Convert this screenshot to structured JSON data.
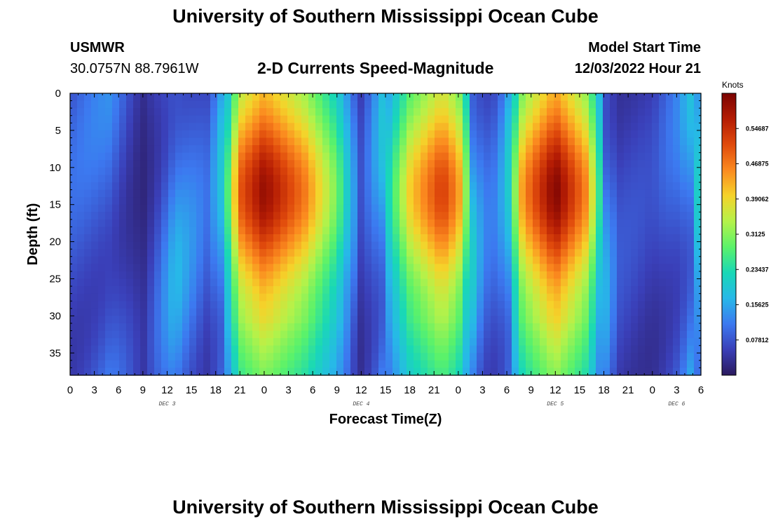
{
  "page": {
    "title": "University of Southern Mississippi Ocean Cube",
    "station_name": "USMWR",
    "station_coords": "30.0757N  88.7961W",
    "subtitle": "2-D Currents Speed-Magnitude",
    "model_start_label": "Model Start Time",
    "model_start_value": "12/03/2022 Hour 21",
    "footer_title": "University of Southern Mississippi Ocean Cube"
  },
  "chart_data": {
    "type": "heatmap",
    "title": "2-D Currents Speed-Magnitude",
    "xlabel": "Forecast Time(Z)",
    "ylabel": "Depth (ft)",
    "x_range_hours": [
      0,
      78
    ],
    "x_tick_hours": [
      0,
      3,
      6,
      9,
      12,
      15,
      18,
      21,
      24,
      27,
      30,
      33,
      36,
      39,
      42,
      45,
      48,
      51,
      54,
      57,
      60,
      63,
      66,
      69,
      72,
      75,
      78
    ],
    "x_tick_labels": [
      "0",
      "3",
      "6",
      "9",
      "12",
      "15",
      "18",
      "21",
      "0",
      "3",
      "6",
      "9",
      "12",
      "15",
      "18",
      "21",
      "0",
      "3",
      "6",
      "9",
      "12",
      "15",
      "18",
      "21",
      "0",
      "3",
      "6"
    ],
    "date_labels": [
      {
        "text": "DEC 3",
        "hour": 12
      },
      {
        "text": "DEC 4",
        "hour": 36
      },
      {
        "text": "DEC 5",
        "hour": 60
      },
      {
        "text": "DEC 6",
        "hour": 75
      }
    ],
    "y_range_ft": [
      0,
      38
    ],
    "y_ticks": [
      0,
      5,
      10,
      15,
      20,
      25,
      30,
      35
    ],
    "y_tick_labels": [
      "0",
      "5",
      "10",
      "15",
      "20",
      "25",
      "30",
      "35"
    ],
    "colorbar": {
      "title": "Knots",
      "min": 0.0,
      "max": 0.625,
      "tick_values": [
        0.07812,
        0.15625,
        0.23437,
        0.3125,
        0.39062,
        0.46875,
        0.54687
      ],
      "tick_labels": [
        "0.07812",
        "0.15625",
        "0.23437",
        "0.3125",
        "0.39062",
        "0.46875",
        "0.54687"
      ],
      "colors": [
        "#2b1a5e",
        "#3a3fb8",
        "#3c79f0",
        "#27b8e8",
        "#19d8b6",
        "#5bf26a",
        "#b4f24a",
        "#f5d32a",
        "#fb8a1f",
        "#e04a0c",
        "#b41c04",
        "#7b0402"
      ]
    },
    "speed_profile": [
      {
        "hour": 0,
        "speed": 0.1
      },
      {
        "hour": 5,
        "speed": 0.13
      },
      {
        "hour": 9,
        "speed": 0.04
      },
      {
        "hour": 13,
        "speed": 0.17
      },
      {
        "hour": 17,
        "speed": 0.1
      },
      {
        "hour": 19,
        "speed": 0.2
      },
      {
        "hour": 21,
        "speed": 0.5
      },
      {
        "hour": 24,
        "speed": 0.6
      },
      {
        "hour": 29,
        "speed": 0.47
      },
      {
        "hour": 33,
        "speed": 0.3
      },
      {
        "hour": 36,
        "speed": 0.07
      },
      {
        "hour": 39,
        "speed": 0.2
      },
      {
        "hour": 42,
        "speed": 0.4
      },
      {
        "hour": 46,
        "speed": 0.53
      },
      {
        "hour": 48,
        "speed": 0.45
      },
      {
        "hour": 50,
        "speed": 0.17
      },
      {
        "hour": 52,
        "speed": 0.1
      },
      {
        "hour": 54,
        "speed": 0.17
      },
      {
        "hour": 56,
        "speed": 0.45
      },
      {
        "hour": 60,
        "speed": 0.62
      },
      {
        "hour": 64,
        "speed": 0.45
      },
      {
        "hour": 66,
        "speed": 0.17
      },
      {
        "hour": 68,
        "speed": 0.08
      },
      {
        "hour": 72,
        "speed": 0.07
      },
      {
        "hour": 75,
        "speed": 0.12
      },
      {
        "hour": 78,
        "speed": 0.22
      }
    ]
  }
}
